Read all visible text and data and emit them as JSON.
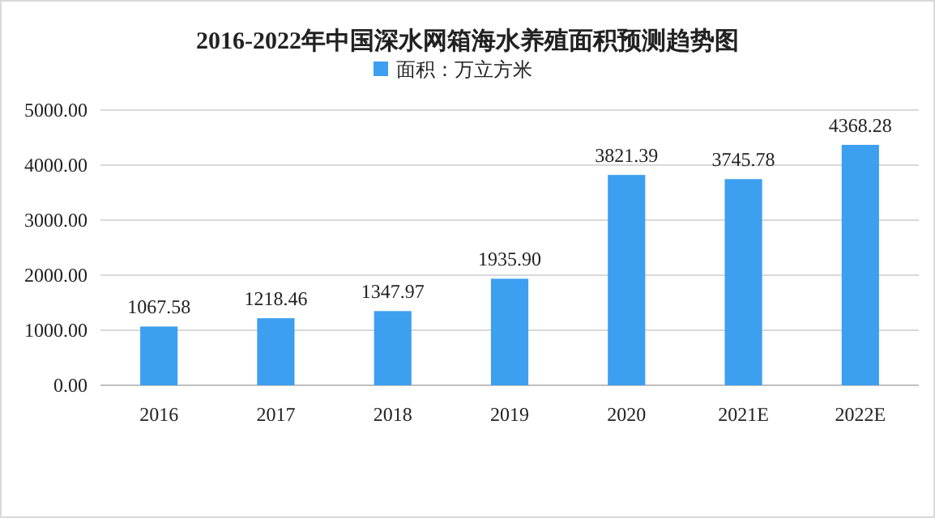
{
  "chart_data": {
    "type": "bar",
    "title": "2016-2022年中国深水网箱海水养殖面积预测趋势图",
    "categories": [
      "2016",
      "2017",
      "2018",
      "2019",
      "2020",
      "2021E",
      "2022E"
    ],
    "series": [
      {
        "name": "面积：万立方米",
        "color": "#3d9ff0",
        "values": [
          1067.58,
          1218.46,
          1347.97,
          1935.9,
          3821.39,
          3745.78,
          4368.28
        ]
      }
    ],
    "value_labels": [
      "1067.58",
      "1218.46",
      "1347.97",
      "1935.90",
      "3821.39",
      "3745.78",
      "4368.28"
    ],
    "ylim": [
      0,
      5000
    ],
    "yticks": [
      {
        "value": 0,
        "label": "0.00"
      },
      {
        "value": 1000,
        "label": "1000.00"
      },
      {
        "value": 2000,
        "label": "2000.00"
      },
      {
        "value": 3000,
        "label": "3000.00"
      },
      {
        "value": 4000,
        "label": "4000.00"
      },
      {
        "value": 5000,
        "label": "5000.00"
      }
    ],
    "grid": "y",
    "legend": "top"
  }
}
